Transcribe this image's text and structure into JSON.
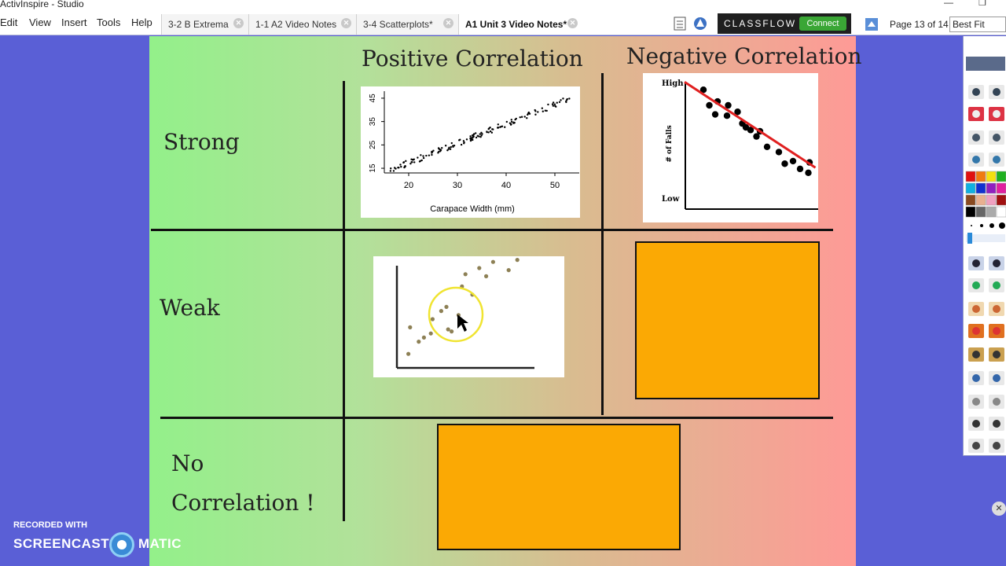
{
  "window": {
    "title": "ActivInspire - Studio"
  },
  "menu": [
    "Edit",
    "View",
    "Insert",
    "Tools",
    "Help"
  ],
  "tabs": [
    {
      "label": "3-2 B Extrema",
      "active": false
    },
    {
      "label": "1-1 A2 Video Notes",
      "active": false
    },
    {
      "label": "3-4 Scatterplots*",
      "active": false
    },
    {
      "label": "A1 Unit 3 Video Notes*",
      "active": true
    }
  ],
  "classflow": {
    "label": "CLASSFLOW",
    "connect": "Connect"
  },
  "pager": {
    "text": "Page 13 of 14"
  },
  "zoom": {
    "value": "Best Fit"
  },
  "flipchart": {
    "header_positive": "Positive Correlation",
    "header_negative": "Negative Correlation",
    "row_strong": "Strong",
    "row_weak": "Weak",
    "row_none_line1": "No",
    "row_none_line2": "Correlation !",
    "colors": {
      "left": "#93f08a",
      "right": "#fe9a96",
      "box": "#fba904"
    }
  },
  "chart_data": [
    {
      "type": "scatter",
      "xlabel": "Carapace Width (mm)",
      "xticks": [
        20,
        30,
        40,
        50
      ],
      "yticks": [
        15,
        25,
        35,
        45
      ],
      "xlim": [
        15,
        55
      ],
      "ylim": [
        13,
        48
      ]
    },
    {
      "type": "scatter",
      "ylabel": "# of Falls",
      "ytick_labels": [
        "High",
        "Low"
      ],
      "trend_line": true,
      "trend_color": "#e02020",
      "points": [
        [
          1,
          9.2
        ],
        [
          1.5,
          8.0
        ],
        [
          2,
          7.3
        ],
        [
          2.2,
          8.3
        ],
        [
          3,
          7.2
        ],
        [
          3.1,
          8.0
        ],
        [
          3.9,
          7.5
        ],
        [
          4.3,
          6.6
        ],
        [
          4.6,
          6.3
        ],
        [
          5,
          6.1
        ],
        [
          5.5,
          5.6
        ],
        [
          5.8,
          6.0
        ],
        [
          6.4,
          4.8
        ],
        [
          7.4,
          4.4
        ],
        [
          7.9,
          3.5
        ],
        [
          8.6,
          3.7
        ],
        [
          9.2,
          3.1
        ],
        [
          9.9,
          2.8
        ],
        [
          10,
          3.6
        ]
      ]
    },
    {
      "type": "scatter",
      "points": [
        [
          0.3,
          0.3
        ],
        [
          0.4,
          1.6
        ],
        [
          0.9,
          0.9
        ],
        [
          1.2,
          1.1
        ],
        [
          1.6,
          1.3
        ],
        [
          1.7,
          2.0
        ],
        [
          2.2,
          2.4
        ],
        [
          2.5,
          2.6
        ],
        [
          2.6,
          1.5
        ],
        [
          2.8,
          1.4
        ],
        [
          3.4,
          3.6
        ],
        [
          3.6,
          4.2
        ],
        [
          4.0,
          3.2
        ],
        [
          4.4,
          4.5
        ],
        [
          4.8,
          4.1
        ],
        [
          5.2,
          4.8
        ],
        [
          6.1,
          4.4
        ],
        [
          6.6,
          4.9
        ],
        [
          3.2,
          2.2
        ]
      ]
    }
  ],
  "watermark": {
    "line1": "RECORDED WITH",
    "line2a": "SCREENCAST",
    "line2b": "MATIC"
  }
}
